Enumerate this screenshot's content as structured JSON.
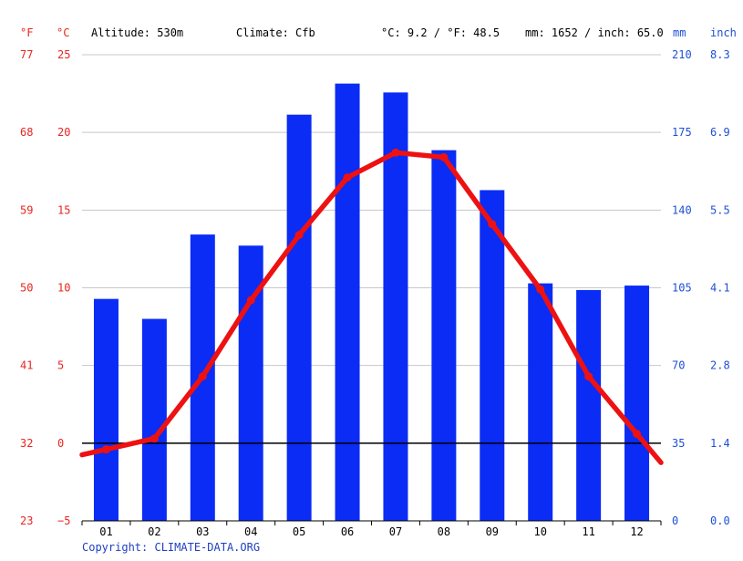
{
  "header": {
    "altitude": "Altitude: 530m",
    "climate": "Climate: Cfb",
    "avg_temp": "°C: 9.2 / °F: 48.5",
    "precip": "mm: 1652 / inch: 65.0"
  },
  "copyright": "Copyright: CLIMATE-DATA.ORG",
  "colors": {
    "temp_axis": "#e8251f",
    "precip_axis": "#1f4fd6",
    "bars": "#0a2cf5",
    "line": "#ee1111",
    "grid": "#c8c8c8",
    "zero_line": "#000000",
    "copyright": "#1f3fc0"
  },
  "chart_data": {
    "type": "bar",
    "combined_with": "line",
    "categories": [
      "01",
      "02",
      "03",
      "04",
      "05",
      "06",
      "07",
      "08",
      "09",
      "10",
      "11",
      "12"
    ],
    "series": [
      {
        "name": "mm",
        "axis": "right",
        "type": "bar",
        "values": [
          100,
          91,
          129,
          124,
          183,
          197,
          193,
          167,
          149,
          107,
          104,
          106
        ]
      },
      {
        "name": "°C",
        "axis": "left",
        "type": "line",
        "values": [
          -0.4,
          0.3,
          4.3,
          9.2,
          13.4,
          17.1,
          18.7,
          18.4,
          14.1,
          9.9,
          4.3,
          0.6
        ]
      }
    ],
    "left_axis": {
      "unit_c": "°C",
      "unit_f": "°F",
      "ticks_c": [
        "25",
        "20",
        "15",
        "10",
        "5",
        "0",
        "−5"
      ],
      "ticks_f": [
        "77",
        "68",
        "59",
        "50",
        "41",
        "32",
        "23"
      ],
      "ylim_c": [
        -5,
        25
      ]
    },
    "right_axis": {
      "unit_mm": "mm",
      "unit_inch": "inch",
      "ticks_mm": [
        "210",
        "175",
        "140",
        "105",
        "70",
        "35",
        "0"
      ],
      "ticks_inch": [
        "8.3",
        "6.9",
        "5.5",
        "4.1",
        "2.8",
        "1.4",
        "0.0"
      ],
      "ylim_mm": [
        0,
        210
      ]
    },
    "grid": true
  }
}
